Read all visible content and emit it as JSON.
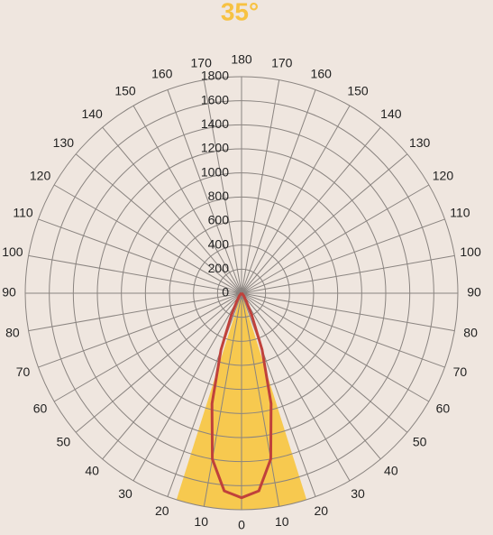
{
  "chart_data": {
    "type": "polar",
    "title": "35°",
    "beam_angle": 35,
    "beam_color": "#f7c94f",
    "rlim": [
      0,
      1800
    ],
    "rticks": [
      0,
      200,
      400,
      600,
      800,
      1000,
      1200,
      1400,
      1600,
      1800
    ],
    "theta_ticks": [
      0,
      10,
      20,
      30,
      40,
      50,
      60,
      70,
      80,
      90,
      100,
      110,
      120,
      130,
      140,
      150,
      160,
      170,
      180,
      {
        "value": -10,
        "label": "10"
      },
      {
        "value": -20,
        "label": "20"
      },
      {
        "value": -30,
        "label": "30"
      },
      {
        "value": -40,
        "label": "40"
      },
      {
        "value": -50,
        "label": "50"
      },
      {
        "value": -60,
        "label": "60"
      },
      {
        "value": -70,
        "label": "70"
      },
      {
        "value": -80,
        "label": "80"
      },
      {
        "value": -90,
        "label": "90"
      },
      {
        "value": -100,
        "label": "100"
      },
      {
        "value": -110,
        "label": "110"
      },
      {
        "value": -120,
        "label": "120"
      },
      {
        "value": -130,
        "label": "130"
      },
      {
        "value": -140,
        "label": "140"
      },
      {
        "value": -150,
        "label": "150"
      },
      {
        "value": -160,
        "label": "160"
      },
      {
        "value": -170,
        "label": "170"
      }
    ],
    "grid": true,
    "series": [
      {
        "color": "#c0413b",
        "theta": [
          -90,
          -60,
          -40,
          -30,
          -25,
          -20,
          -15,
          -10,
          -5,
          0,
          5,
          10,
          15,
          20,
          25,
          30,
          40,
          60,
          90
        ],
        "values": [
          0,
          5,
          30,
          80,
          200,
          500,
          950,
          1400,
          1650,
          1700,
          1650,
          1400,
          950,
          500,
          200,
          80,
          30,
          5,
          0
        ]
      }
    ]
  }
}
